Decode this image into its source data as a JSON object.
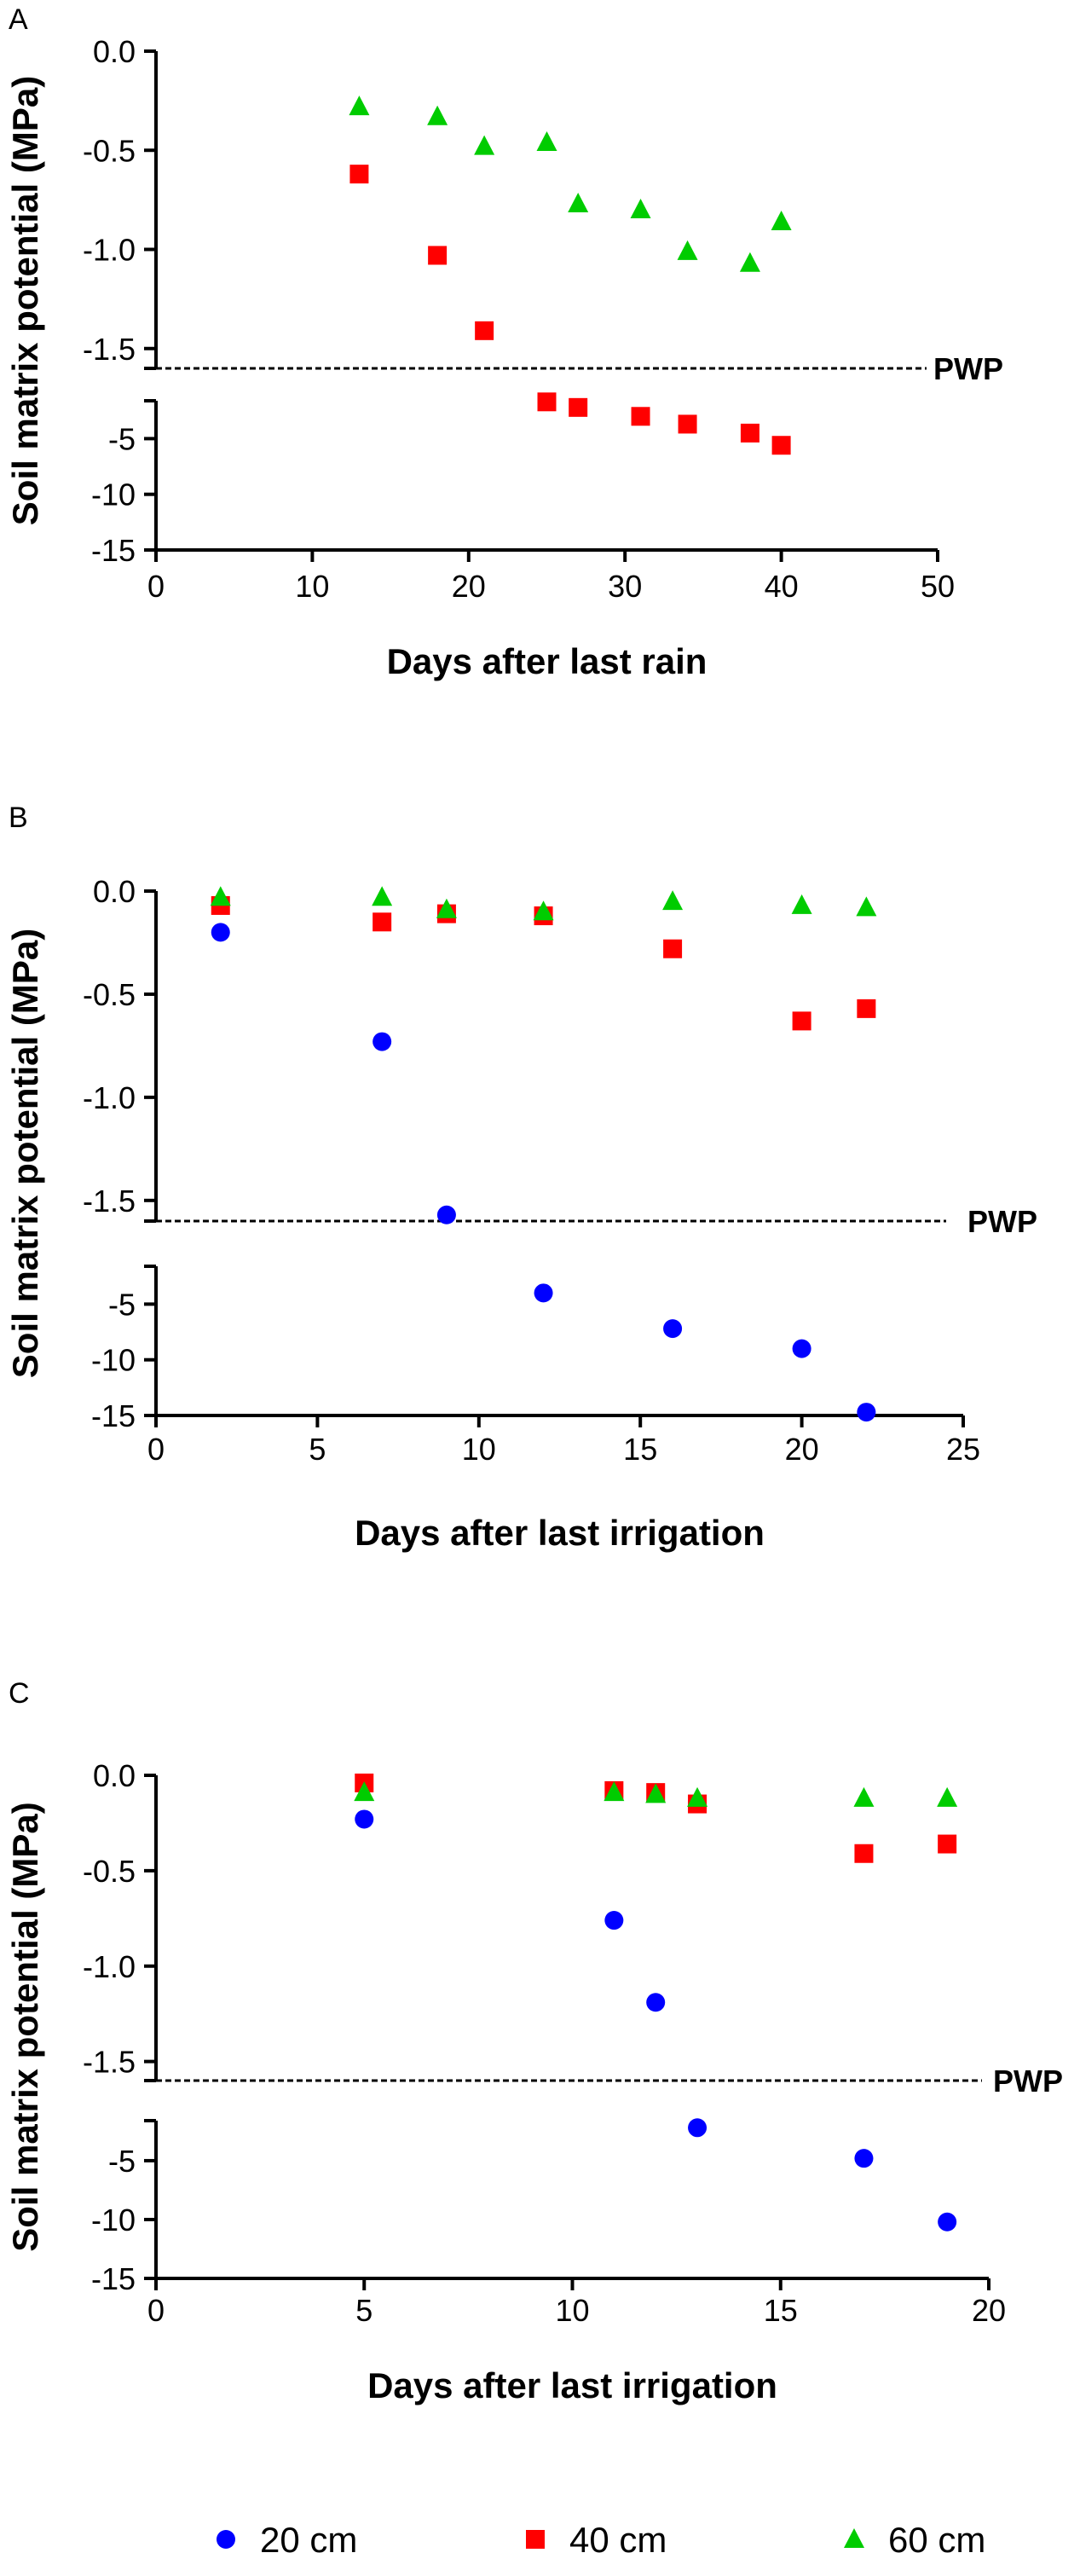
{
  "chart_data": [
    {
      "type": "scatter",
      "panel": "A",
      "title": "",
      "xlabel": "Days after last rain",
      "ylabel": "Soil matrix potential (MPa)",
      "xlim": [
        0,
        50
      ],
      "xticks": [
        0,
        10,
        20,
        30,
        40,
        50
      ],
      "x_tick_labels": [
        "0",
        "10",
        "20",
        "30",
        "40",
        "50"
      ],
      "upper_segment": {
        "ylim": [
          -1.6,
          0.0
        ],
        "yticks": [
          0.0,
          -0.5,
          -1.0,
          -1.5
        ],
        "y_tick_labels": [
          "0.0",
          "-0.5",
          "-1.0",
          "-1.5"
        ]
      },
      "lower_segment": {
        "ylim": [
          -15,
          -1.6
        ],
        "yticks": [
          -5,
          -10,
          -15
        ],
        "y_tick_labels": [
          "-5",
          "-10",
          "-15"
        ]
      },
      "reference_line": {
        "y": -1.6,
        "label": "PWP",
        "style": "dashed"
      },
      "series": [
        {
          "name": "40 cm",
          "marker": "square",
          "color": "#ff0000",
          "x": [
            13,
            18,
            21,
            25,
            27,
            31,
            34,
            38,
            40
          ],
          "y": [
            -0.62,
            -1.03,
            -1.41,
            -1.7,
            -2.2,
            -3.0,
            -3.7,
            -4.5,
            -5.6
          ]
        },
        {
          "name": "60 cm",
          "marker": "triangle",
          "color": "#00cc00",
          "x": [
            13,
            18,
            21,
            25,
            27,
            31,
            34,
            38,
            40
          ],
          "y": [
            -0.28,
            -0.33,
            -0.48,
            -0.46,
            -0.77,
            -0.8,
            -1.01,
            -1.07,
            -0.86
          ]
        }
      ]
    },
    {
      "type": "scatter",
      "panel": "B",
      "title": "",
      "xlabel": "Days after last irrigation",
      "ylabel": "Soil matrix potential (MPa)",
      "xlim": [
        0,
        25
      ],
      "xticks": [
        0,
        5,
        10,
        15,
        20,
        25
      ],
      "x_tick_labels": [
        "0",
        "5",
        "10",
        "15",
        "20",
        "25"
      ],
      "upper_segment": {
        "ylim": [
          -1.6,
          0.0
        ],
        "yticks": [
          0.0,
          -0.5,
          -1.0,
          -1.5
        ],
        "y_tick_labels": [
          "0.0",
          "-0.5",
          "-1.0",
          "-1.5"
        ]
      },
      "lower_segment": {
        "ylim": [
          -15,
          -1.6
        ],
        "yticks": [
          -5,
          -10,
          -15
        ],
        "y_tick_labels": [
          "-5",
          "-10",
          "-15"
        ]
      },
      "reference_line": {
        "y": -1.6,
        "label": "PWP",
        "style": "dashed"
      },
      "series": [
        {
          "name": "20 cm",
          "marker": "circle",
          "color": "#0000ff",
          "x": [
            2,
            7,
            9,
            12,
            16,
            20,
            22
          ],
          "y": [
            -0.2,
            -0.73,
            -1.57,
            -4.0,
            -7.2,
            -9.0,
            -14.7
          ]
        },
        {
          "name": "40 cm",
          "marker": "square",
          "color": "#ff0000",
          "x": [
            2,
            7,
            9,
            12,
            16,
            20,
            22
          ],
          "y": [
            -0.07,
            -0.15,
            -0.11,
            -0.12,
            -0.28,
            -0.63,
            -0.57
          ]
        },
        {
          "name": "60 cm",
          "marker": "triangle",
          "color": "#00cc00",
          "x": [
            2,
            7,
            9,
            12,
            16,
            20,
            22
          ],
          "y": [
            -0.03,
            -0.03,
            -0.09,
            -0.1,
            -0.05,
            -0.07,
            -0.08
          ]
        }
      ]
    },
    {
      "type": "scatter",
      "panel": "C",
      "title": "",
      "xlabel": "Days after last irrigation",
      "ylabel": "Soil matrix potential (MPa)",
      "xlim": [
        0,
        20
      ],
      "xticks": [
        0,
        5,
        10,
        15,
        20
      ],
      "x_tick_labels": [
        "0",
        "5",
        "10",
        "15",
        "20"
      ],
      "upper_segment": {
        "ylim": [
          -1.6,
          0.0
        ],
        "yticks": [
          0.0,
          -0.5,
          -1.0,
          -1.5
        ],
        "y_tick_labels": [
          "0.0",
          "-0.5",
          "-1.0",
          "-1.5"
        ]
      },
      "lower_segment": {
        "ylim": [
          -15,
          -1.6
        ],
        "yticks": [
          -5,
          -10,
          -15
        ],
        "y_tick_labels": [
          "-5",
          "-10",
          "-15"
        ]
      },
      "reference_line": {
        "y": -1.6,
        "label": "PWP",
        "style": "dashed"
      },
      "series": [
        {
          "name": "20 cm",
          "marker": "circle",
          "color": "#0000ff",
          "x": [
            5,
            11,
            12,
            13,
            17,
            19
          ],
          "y": [
            -0.23,
            -0.76,
            -1.19,
            -2.2,
            -4.8,
            -10.2
          ]
        },
        {
          "name": "40 cm",
          "marker": "square",
          "color": "#ff0000",
          "x": [
            5,
            11,
            12,
            13,
            17,
            19
          ],
          "y": [
            -0.04,
            -0.08,
            -0.09,
            -0.15,
            -0.41,
            -0.36
          ]
        },
        {
          "name": "60 cm",
          "marker": "triangle",
          "color": "#00cc00",
          "x": [
            5,
            11,
            12,
            13,
            17,
            19
          ],
          "y": [
            -0.09,
            -0.09,
            -0.1,
            -0.12,
            -0.12,
            -0.12
          ]
        }
      ]
    }
  ],
  "legend": {
    "position": "bottom",
    "items": [
      {
        "label": "20 cm",
        "marker": "circle",
        "color": "#0000ff"
      },
      {
        "label": "40 cm",
        "marker": "square",
        "color": "#ff0000"
      },
      {
        "label": "60 cm",
        "marker": "triangle",
        "color": "#00cc00"
      }
    ]
  }
}
